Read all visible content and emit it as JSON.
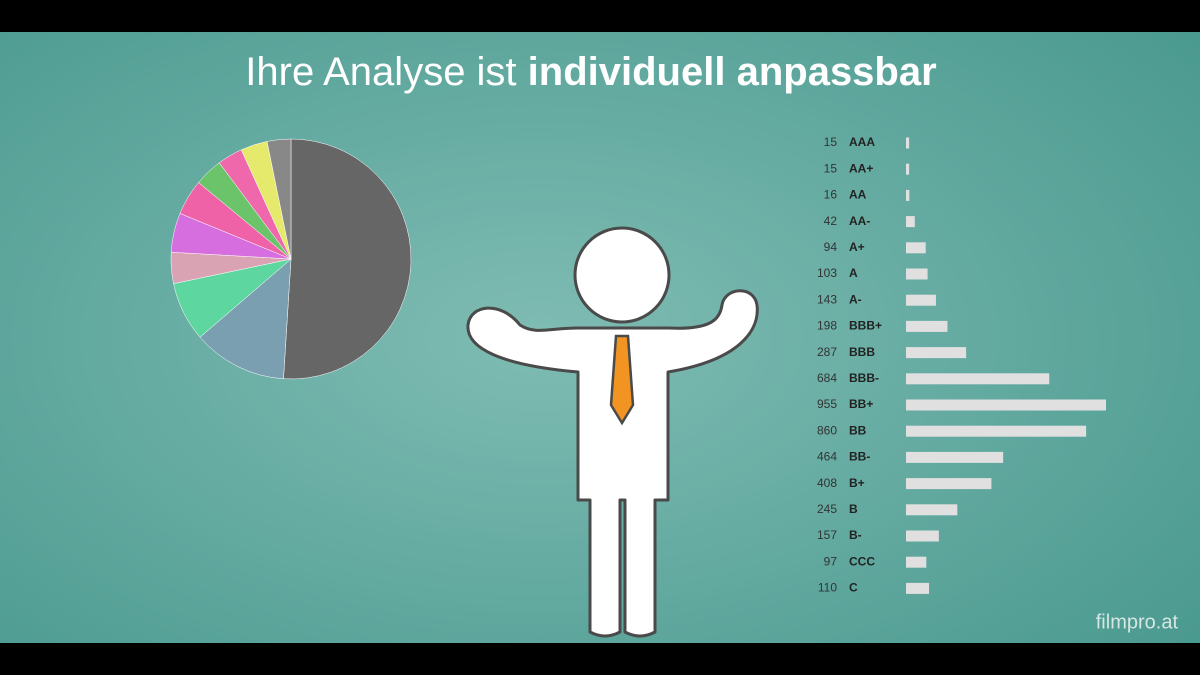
{
  "title": {
    "regular": "Ihre Analyse ist",
    "bold": "individuell anpassbar"
  },
  "watermark": "filmpro.at",
  "chart_data": [
    {
      "type": "pie",
      "values": [
        51,
        12.7,
        8,
        4.2,
        5.3,
        4.8,
        3.8,
        3.4,
        3.6,
        3.2
      ],
      "colors": [
        "#666666",
        "#7a9fb0",
        "#5ed6a0",
        "#d9a3b4",
        "#d76ee0",
        "#f062a8",
        "#6cc46a",
        "#f068ac",
        "#e6ea6c",
        "#888888"
      ]
    },
    {
      "type": "hbar",
      "color": "#e0e0e0",
      "categories": [
        "AAA",
        "AA+",
        "AA",
        "AA-",
        "A+",
        "A",
        "A-",
        "BBB+",
        "BBB",
        "BBB-",
        "BB+",
        "BB",
        "BB-",
        "B+",
        "B",
        "B-",
        "CCC",
        "C"
      ],
      "values": [
        15,
        15,
        16,
        42,
        94,
        103,
        143,
        198,
        287,
        684,
        955,
        860,
        464,
        408,
        245,
        157,
        97,
        110
      ]
    }
  ]
}
